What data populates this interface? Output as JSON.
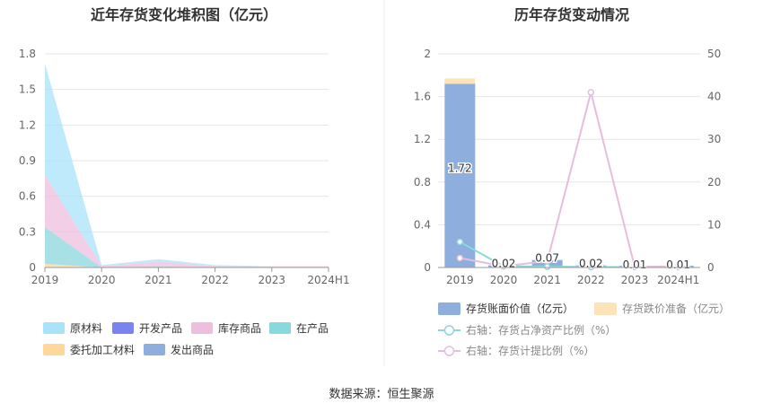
{
  "source": "数据来源：恒生聚源",
  "chart_data": [
    {
      "type": "area",
      "title": "近年存货变化堆积图（亿元）",
      "stacked": true,
      "categories": [
        "2019",
        "2020",
        "2021",
        "2022",
        "2023",
        "2024H1"
      ],
      "ylim": [
        0,
        1.8
      ],
      "yticks": [
        "0",
        "0.3",
        "0.6",
        "0.9",
        "1.2",
        "1.5",
        "1.8"
      ],
      "grid": true,
      "legend_position": "bottom",
      "series": [
        {
          "name": "委托加工材料",
          "color": "#fdd89a",
          "values": [
            0.03,
            0.0,
            0.0,
            0.0,
            0.0,
            0.0
          ]
        },
        {
          "name": "在产品",
          "color": "#8ad7dc",
          "values": [
            0.31,
            0.0,
            0.01,
            0.0,
            0.0,
            0.0
          ]
        },
        {
          "name": "库存商品",
          "color": "#edbfdf",
          "values": [
            0.44,
            0.01,
            0.04,
            0.01,
            0.01,
            0.01
          ]
        },
        {
          "name": "原材料",
          "color": "#a9e3fa",
          "values": [
            0.94,
            0.01,
            0.02,
            0.01,
            0.0,
            0.0
          ]
        },
        {
          "name": "开发产品",
          "color": "#7b83f0",
          "values": [
            0,
            0,
            0,
            0,
            0,
            0
          ]
        },
        {
          "name": "发出商品",
          "color": "#8eaedd",
          "values": [
            0,
            0,
            0,
            0,
            0,
            0
          ]
        }
      ],
      "legend": [
        "原材料",
        "开发产品",
        "库存商品",
        "在产品",
        "委托加工材料",
        "发出商品"
      ]
    },
    {
      "type": "bar",
      "title": "历年存货变动情况",
      "categories": [
        "2019",
        "2020",
        "2021",
        "2022",
        "2023",
        "2024H1"
      ],
      "ylim": [
        0,
        2
      ],
      "yticks": [
        "0",
        "0.4",
        "0.8",
        "1.2",
        "1.6",
        "2"
      ],
      "y2lim": [
        0,
        50
      ],
      "y2ticks": [
        "0",
        "10",
        "20",
        "30",
        "40",
        "50"
      ],
      "grid": true,
      "legend_position": "bottom",
      "series": [
        {
          "name": "存货账面价值（亿元）",
          "axis": "left",
          "type": "bar",
          "color": "#8eaedd",
          "values": [
            1.72,
            0.02,
            0.07,
            0.02,
            0.01,
            0.01
          ],
          "labels": [
            "1.72",
            "0.02",
            "0.07",
            "0.02",
            "0.01",
            "0.01"
          ]
        },
        {
          "name": "存货跌价准备（亿元）",
          "axis": "left",
          "type": "bar",
          "color": "#fde3b8",
          "values": [
            0.05,
            0.0,
            0.0,
            0.0,
            0.0,
            0.0
          ]
        },
        {
          "name": "右轴：存货占净资产比例（%）",
          "axis": "right",
          "type": "line",
          "color": "#8ad7dc",
          "values": [
            6.0,
            0.3,
            0.2,
            0.1,
            0.1,
            0.1
          ]
        },
        {
          "name": "右轴：存货计提比例（%）",
          "axis": "right",
          "type": "line",
          "color": "#e5bede",
          "values": [
            2.2,
            0.3,
            1.5,
            41.0,
            0.2,
            0.2
          ]
        }
      ]
    }
  ]
}
